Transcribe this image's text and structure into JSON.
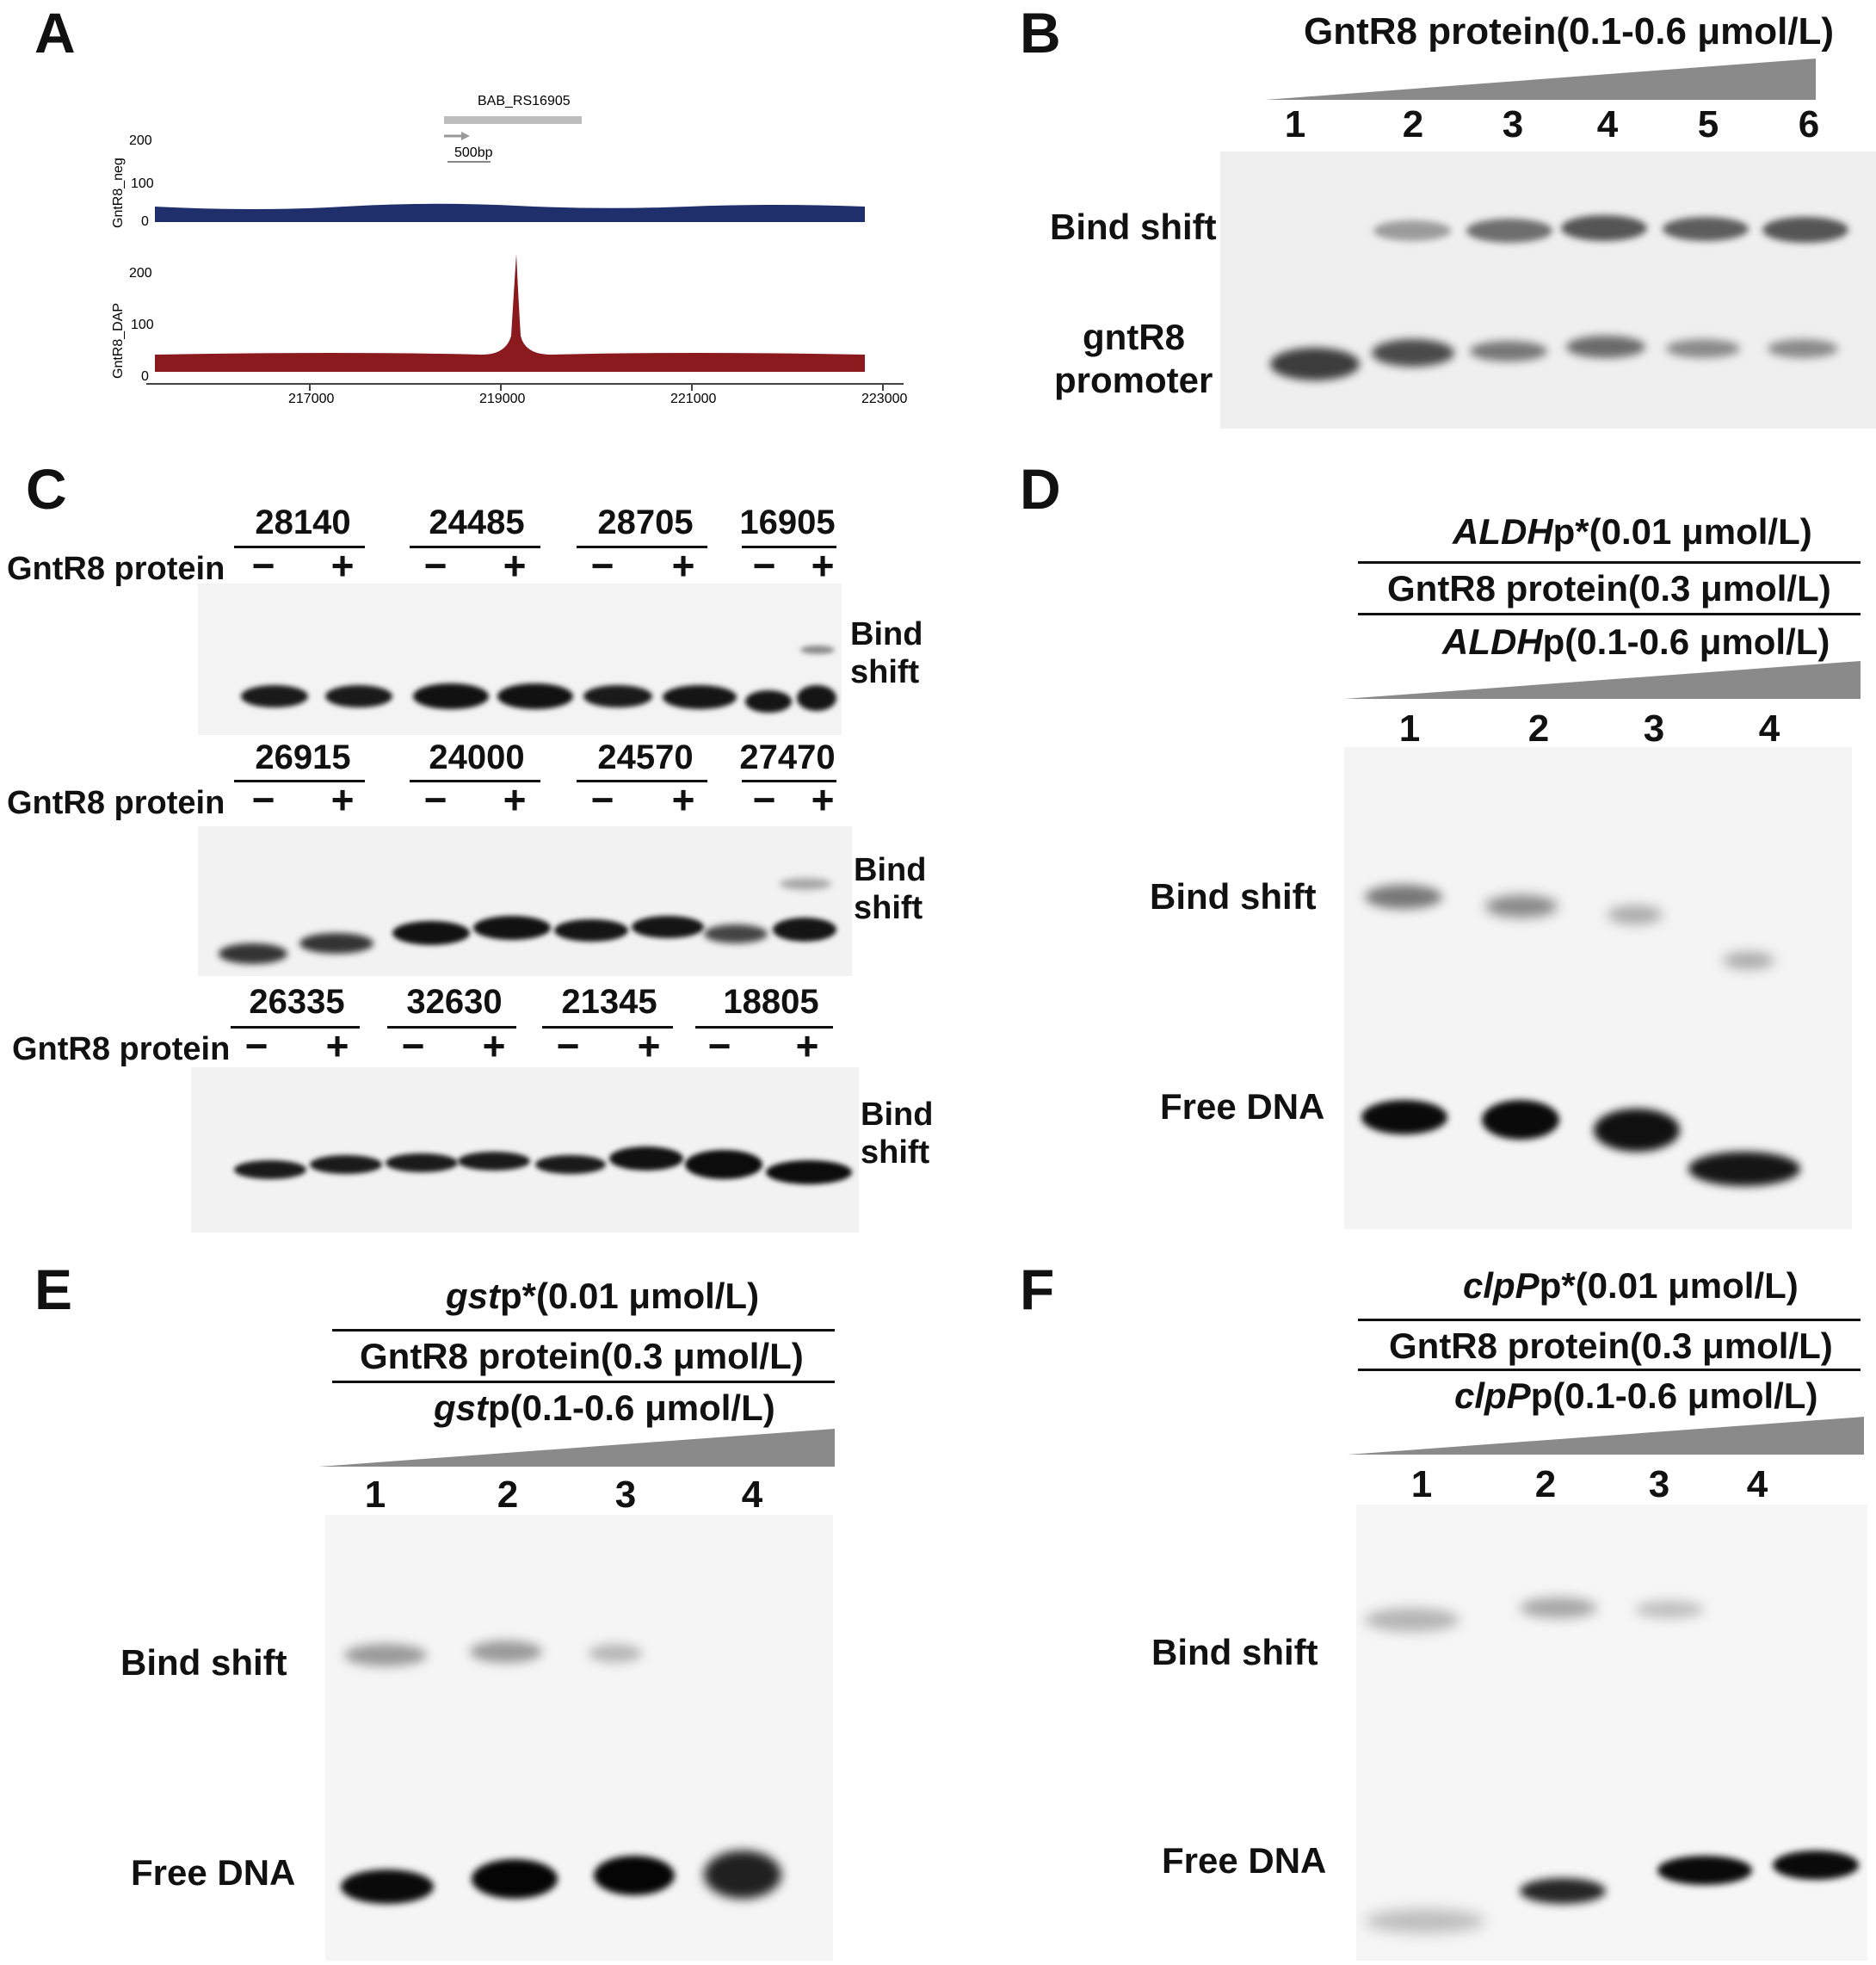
{
  "panels": {
    "A": {
      "letter": "A",
      "gene_label": "BAB_RS16905",
      "scale_label": "500bp",
      "track_top_label": "GntR8_neg",
      "track_bottom_label": "GntR8_DAP",
      "y_ticks": [
        "200",
        "100",
        "0"
      ],
      "x_ticks": [
        "217000",
        "219000",
        "221000",
        "223000"
      ],
      "colors": {
        "neg": "#1f2f6b",
        "dap": "#8b1a1f"
      }
    },
    "B": {
      "letter": "B",
      "title": "GntR8 protein(0.1-0.6 μmol/L)",
      "lanes": [
        "1",
        "2",
        "3",
        "4",
        "5",
        "6"
      ],
      "bind_label": "Bind shift",
      "promoter_label_1": "gntR8",
      "promoter_label_2": "promoter"
    },
    "C": {
      "letter": "C",
      "protein_label": "GntR8 protein",
      "bind_label_1": "Bind",
      "bind_label_2": "shift",
      "minus": "−",
      "plus": "+",
      "row1": [
        "28140",
        "24485",
        "28705",
        "16905"
      ],
      "row2": [
        "26915",
        "24000",
        "24570",
        "27470"
      ],
      "row3": [
        "26335",
        "32630",
        "21345",
        "18805"
      ]
    },
    "D": {
      "letter": "D",
      "line1_italic": "ALDH",
      "line1_rest": "p*(0.01 μmol/L)",
      "line2": "GntR8 protein(0.3 μmol/L)",
      "line3_italic": "ALDH",
      "line3_rest": "p(0.1-0.6 μmol/L)",
      "lanes": [
        "1",
        "2",
        "3",
        "4"
      ],
      "bind_label": "Bind  shift",
      "free_label": "Free  DNA"
    },
    "E": {
      "letter": "E",
      "line1_italic": "gst",
      "line1_rest": "p*(0.01 μmol/L)",
      "line2": "GntR8 protein(0.3 μmol/L)",
      "line3_italic": "gst",
      "line3_rest": "p(0.1-0.6 μmol/L)",
      "lanes": [
        "1",
        "2",
        "3",
        "4"
      ],
      "bind_label": "Bind  shift",
      "free_label": "Free  DNA"
    },
    "F": {
      "letter": "F",
      "line1_italic": "clpP",
      "line1_rest": "p*(0.01 μmol/L)",
      "line2": "GntR8 protein(0.3 μmol/L)",
      "line3_italic": "clpP",
      "line3_rest": "p(0.1-0.6 μmol/L)",
      "lanes": [
        "1",
        "2",
        "3",
        "4"
      ],
      "bind_label": "Bind  shift",
      "free_label": "Free  DNA"
    }
  }
}
